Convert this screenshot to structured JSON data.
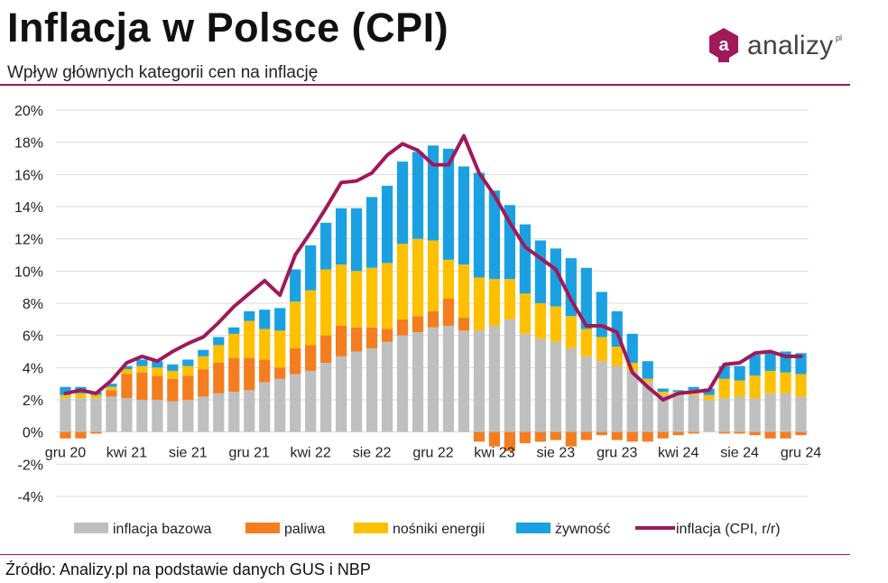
{
  "header": {
    "title": "Inflacja w Polsce (CPI)",
    "subtitle": "Wpływ głównych kategorii cen na inflację",
    "logo_text": "analizy",
    "logo_suffix": "pl",
    "logo_letter": "a"
  },
  "footer": {
    "source": "Źródło: Analizy.pl na podstawie danych GUS i NBP"
  },
  "colors": {
    "accent": "#a0195a",
    "bazowa": "#bfbfbf",
    "paliwa": "#f47d20",
    "energia": "#ffc000",
    "zywnosc": "#1ba1e2",
    "cpi_line": "#a0195a",
    "grid": "#d9d9d9"
  },
  "chart_data": {
    "type": "bar",
    "stacked": true,
    "x_tick_labels": [
      "gru 20",
      "kwi 21",
      "sie 21",
      "gru 21",
      "kwi 22",
      "sie 22",
      "gru 22",
      "kwi 23",
      "sie 23",
      "gru 23",
      "kwi 24",
      "sie 24",
      "gru 24"
    ],
    "categories": [
      "gru 20",
      "sty 21",
      "lut 21",
      "mar 21",
      "kwi 21",
      "maj 21",
      "cze 21",
      "lip 21",
      "sie 21",
      "wrz 21",
      "paź 21",
      "lis 21",
      "gru 21",
      "sty 22",
      "lut 22",
      "mar 22",
      "kwi 22",
      "maj 22",
      "cze 22",
      "lip 22",
      "sie 22",
      "wrz 22",
      "paź 22",
      "lis 22",
      "gru 22",
      "sty 23",
      "lut 23",
      "mar 23",
      "kwi 23",
      "maj 23",
      "cze 23",
      "lip 23",
      "sie 23",
      "wrz 23",
      "paź 23",
      "lis 23",
      "gru 23",
      "sty 24",
      "lut 24",
      "mar 24",
      "kwi 24",
      "maj 24",
      "cze 24",
      "lip 24",
      "sie 24",
      "wrz 24",
      "paź 24",
      "lis 24",
      "gru 24"
    ],
    "y_tick_labels": [
      "-4%",
      "-2%",
      "0%",
      "2%",
      "4%",
      "6%",
      "8%",
      "10%",
      "12%",
      "14%",
      "16%",
      "18%",
      "20%"
    ],
    "ylim": [
      -4,
      20
    ],
    "grid": true,
    "legend_position": "bottom",
    "series": [
      {
        "name": "inflacja bazowa",
        "kind": "bar",
        "values": [
          2.1,
          2.1,
          2.1,
          2.2,
          2.1,
          2.0,
          2.0,
          1.9,
          2.0,
          2.2,
          2.4,
          2.5,
          2.6,
          3.1,
          3.3,
          3.6,
          3.8,
          4.3,
          4.7,
          5.0,
          5.2,
          5.6,
          6.0,
          6.2,
          6.5,
          6.6,
          6.3,
          6.3,
          6.6,
          7.0,
          6.1,
          5.8,
          5.6,
          5.2,
          4.7,
          4.4,
          4.1,
          3.8,
          3.1,
          2.3,
          2.3,
          2.3,
          2.0,
          2.1,
          2.2,
          2.1,
          2.4,
          2.4,
          2.2
        ]
      },
      {
        "name": "paliwa",
        "kind": "bar",
        "values": [
          -0.4,
          -0.4,
          -0.1,
          0.4,
          1.5,
          1.7,
          1.5,
          1.4,
          1.5,
          1.7,
          1.9,
          2.1,
          2.0,
          1.4,
          0.7,
          1.6,
          1.6,
          1.7,
          1.9,
          1.5,
          1.3,
          0.8,
          1.0,
          1.0,
          1.0,
          1.7,
          0.8,
          -0.6,
          -0.9,
          -1.2,
          -0.7,
          -0.6,
          -0.5,
          -0.9,
          -0.5,
          -0.2,
          -0.5,
          -0.6,
          -0.6,
          -0.4,
          -0.2,
          -0.1,
          0.0,
          -0.1,
          -0.1,
          -0.2,
          -0.4,
          -0.4,
          -0.2
        ]
      },
      {
        "name": "nośniki energii",
        "kind": "bar",
        "values": [
          0.2,
          0.3,
          0.2,
          0.2,
          0.3,
          0.4,
          0.5,
          0.5,
          0.6,
          0.8,
          1.1,
          1.5,
          2.3,
          1.9,
          2.3,
          2.9,
          3.4,
          4.1,
          3.8,
          3.5,
          3.7,
          4.1,
          4.7,
          4.8,
          4.4,
          2.4,
          3.3,
          3.3,
          2.9,
          2.5,
          2.5,
          2.2,
          2.2,
          2.0,
          1.7,
          1.5,
          1.2,
          0.5,
          0.2,
          0.2,
          0.2,
          0.3,
          0.3,
          1.2,
          1.0,
          1.4,
          1.4,
          1.3,
          1.4
        ]
      },
      {
        "name": "żywność",
        "kind": "bar",
        "values": [
          0.5,
          0.4,
          0.2,
          0.2,
          0.2,
          0.4,
          0.4,
          0.4,
          0.4,
          0.4,
          0.5,
          0.4,
          0.6,
          1.2,
          1.4,
          2.0,
          2.8,
          2.9,
          3.5,
          3.9,
          4.4,
          4.8,
          5.1,
          5.4,
          5.9,
          6.9,
          6.1,
          6.5,
          5.5,
          4.6,
          4.3,
          3.9,
          3.6,
          3.6,
          3.8,
          2.8,
          2.2,
          1.8,
          1.1,
          0.2,
          0.1,
          0.2,
          0.4,
          0.8,
          0.9,
          1.3,
          1.2,
          1.3,
          1.3
        ]
      },
      {
        "name": "inflacja (CPI, r/r)",
        "kind": "line",
        "values": [
          2.4,
          2.6,
          2.4,
          3.2,
          4.3,
          4.7,
          4.4,
          5.0,
          5.5,
          5.9,
          6.8,
          7.8,
          8.6,
          9.4,
          8.5,
          11.0,
          12.4,
          13.9,
          15.5,
          15.6,
          16.1,
          17.2,
          17.9,
          17.5,
          16.6,
          16.6,
          18.4,
          16.1,
          14.7,
          13.0,
          11.5,
          10.8,
          10.1,
          8.2,
          6.6,
          6.6,
          6.2,
          3.7,
          2.8,
          2.0,
          2.4,
          2.5,
          2.6,
          4.2,
          4.3,
          4.9,
          5.0,
          4.7,
          4.7
        ]
      }
    ]
  }
}
